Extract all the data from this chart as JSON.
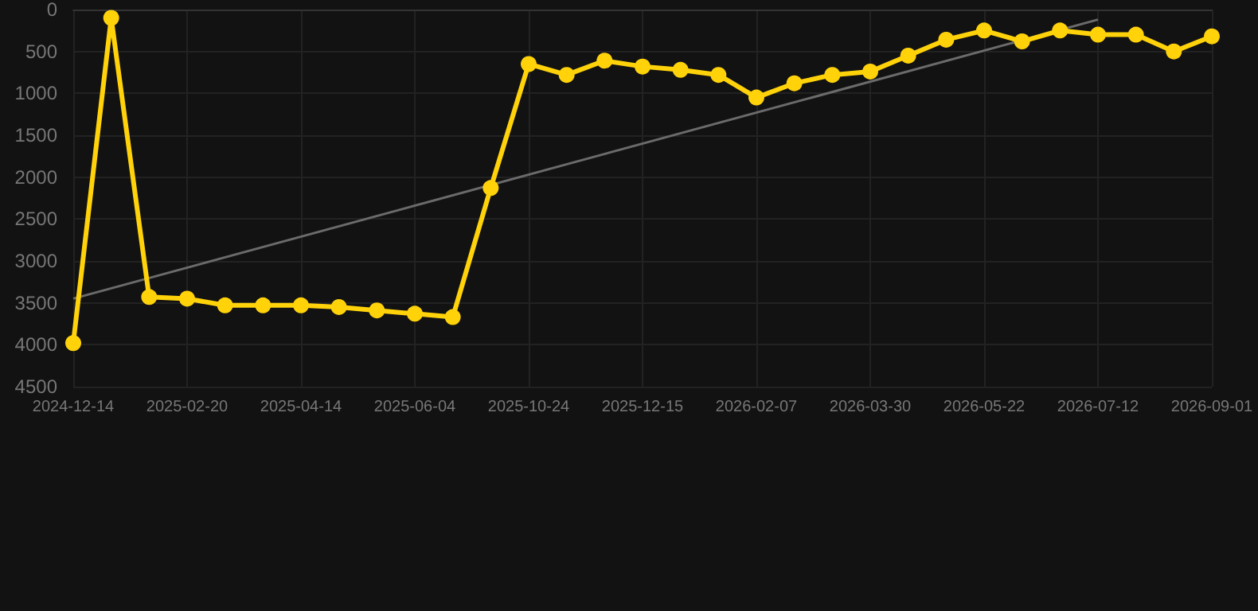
{
  "chart_data": {
    "type": "line",
    "categories": [
      "2024-12-14",
      null,
      null,
      "2025-02-20",
      null,
      null,
      "2025-04-14",
      null,
      null,
      "2025-06-04",
      null,
      null,
      "2025-10-24",
      null,
      null,
      "2025-12-15",
      null,
      null,
      "2026-02-07",
      null,
      null,
      "2026-03-30",
      null,
      null,
      "2026-05-22",
      null,
      null,
      "2026-07-12",
      null,
      null,
      "2026-09-01"
    ],
    "series": [
      {
        "color": "#ffd20a",
        "marker": "circle",
        "values": [
          3980,
          100,
          3430,
          3450,
          3530,
          3530,
          3530,
          3550,
          3590,
          3630,
          3670,
          2130,
          650,
          780,
          610,
          680,
          720,
          780,
          1050,
          880,
          780,
          740,
          550,
          360,
          250,
          380,
          250,
          300,
          300,
          500,
          320
        ]
      },
      {
        "color": "#6b6b6b",
        "marker": "none",
        "values": [
          3450,
          null,
          null,
          null,
          null,
          null,
          null,
          null,
          null,
          null,
          null,
          null,
          null,
          null,
          null,
          null,
          null,
          null,
          null,
          null,
          null,
          null,
          null,
          null,
          null,
          null,
          null,
          120,
          null,
          null,
          null
        ]
      }
    ],
    "ylim": [
      4500,
      0
    ],
    "yticks": [
      0,
      500,
      1000,
      1500,
      2000,
      2500,
      3000,
      3500,
      4000,
      4500
    ],
    "grid": true
  }
}
